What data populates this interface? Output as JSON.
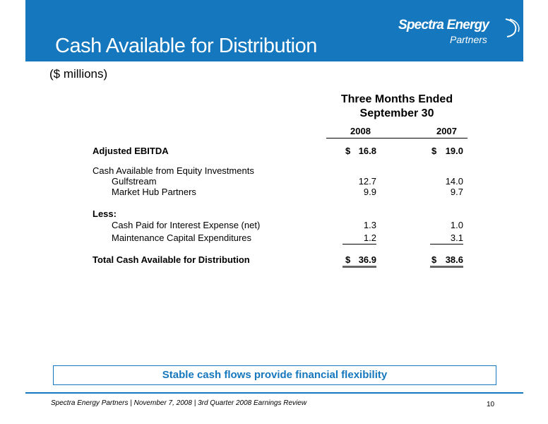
{
  "header": {
    "title": "Cash Available for Distribution",
    "logo_main": "Spectra Energy",
    "logo_sub": "Partners"
  },
  "subtitle": "($ millions)",
  "table": {
    "period_line1": "Three Months Ended",
    "period_line2": "September 30",
    "col_2008": "2008",
    "col_2007": "2007",
    "currency": "$",
    "rows": [
      {
        "label": "Adjusted EBITDA",
        "v2008": "16.8",
        "v2007": "19.0"
      },
      {
        "label": "Cash Available from Equity Investments"
      },
      {
        "label": "Gulfstream",
        "v2008": "12.7",
        "v2007": "14.0"
      },
      {
        "label": "Market Hub Partners",
        "v2008": "9.9",
        "v2007": "9.7"
      },
      {
        "label": "Less:"
      },
      {
        "label": "Cash Paid for Interest Expense (net)",
        "v2008": "1.3",
        "v2007": "1.0"
      },
      {
        "label": "Maintenance Capital Expenditures",
        "v2008": "1.2",
        "v2007": "3.1"
      },
      {
        "label": "Total Cash Available for Distribution",
        "v2008": "36.9",
        "v2007": "38.6"
      }
    ]
  },
  "banner": "Stable cash flows provide financial flexibility",
  "footer": {
    "text": "Spectra Energy Partners | November 7, 2008 | 3rd Quarter 2008 Earnings Review",
    "page": "10"
  }
}
